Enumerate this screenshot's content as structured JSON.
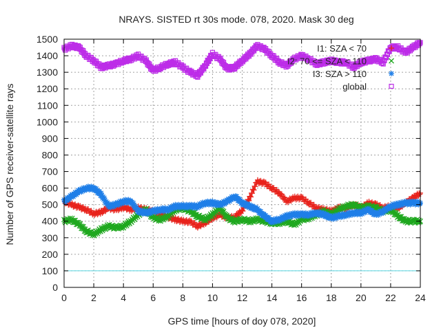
{
  "chart_data": {
    "type": "scatter",
    "title": "NRAYS. SISTED rt 30s mode. 078, 2020. Mask 30 deg",
    "xlabel": "GPS time [hours of doy 078, 2020]",
    "ylabel": "Number of GPS receiver-satellite rays",
    "xlim": [
      0,
      24
    ],
    "ylim": [
      0,
      1500
    ],
    "xticks": [
      "0",
      "2",
      "4",
      "6",
      "8",
      "10",
      "12",
      "14",
      "16",
      "18",
      "20",
      "22",
      "24"
    ],
    "yticks": [
      "0",
      "100",
      "200",
      "300",
      "400",
      "500",
      "600",
      "700",
      "800",
      "900",
      "1000",
      "1100",
      "1200",
      "1300",
      "1400",
      "1500"
    ],
    "grid": true,
    "legend_position": "top-right",
    "reference_line": {
      "y": 100,
      "color": "#55d5e0"
    },
    "series": [
      {
        "name": "I1: SZA < 70",
        "color": "#e8231c",
        "marker": "+",
        "x": [
          0,
          0.5,
          1,
          1.5,
          2,
          2.5,
          3,
          3.5,
          4,
          4.5,
          5,
          5.5,
          6,
          6.5,
          7,
          7.5,
          8,
          8.5,
          9,
          9.5,
          10,
          10.5,
          11,
          11.5,
          12,
          12.5,
          13,
          13.5,
          14,
          14.5,
          15,
          15.5,
          16,
          16.5,
          17,
          17.5,
          18,
          18.5,
          19,
          19.5,
          20,
          20.5,
          21,
          21.5,
          22,
          22.5,
          23,
          23.5,
          24
        ],
        "values": [
          520,
          500,
          485,
          470,
          445,
          455,
          480,
          470,
          485,
          470,
          480,
          470,
          460,
          440,
          425,
          410,
          400,
          395,
          370,
          390,
          420,
          440,
          420,
          425,
          465,
          540,
          640,
          630,
          600,
          570,
          520,
          540,
          540,
          510,
          480,
          470,
          460,
          480,
          480,
          500,
          480,
          510,
          500,
          480,
          490,
          480,
          510,
          540,
          570
        ]
      },
      {
        "name": "I2: 70 <= SZA < 110",
        "color": "#1fa81f",
        "marker": "x",
        "x": [
          0,
          0.5,
          1,
          1.5,
          2,
          2.5,
          3,
          3.5,
          4,
          4.5,
          5,
          5.5,
          6,
          6.5,
          7,
          7.5,
          8,
          8.5,
          9,
          9.5,
          10,
          10.5,
          11,
          11.5,
          12,
          12.5,
          13,
          13.5,
          14,
          14.5,
          15,
          15.5,
          16,
          16.5,
          17,
          17.5,
          18,
          18.5,
          19,
          19.5,
          20,
          20.5,
          21,
          21.5,
          22,
          22.5,
          23,
          23.5,
          24
        ],
        "values": [
          400,
          410,
          380,
          340,
          320,
          350,
          370,
          360,
          370,
          400,
          440,
          470,
          420,
          410,
          430,
          470,
          480,
          460,
          430,
          410,
          440,
          480,
          420,
          400,
          410,
          400,
          410,
          400,
          390,
          390,
          400,
          380,
          410,
          420,
          440,
          460,
          440,
          470,
          490,
          500,
          480,
          490,
          480,
          460,
          470,
          430,
          400,
          400,
          400
        ]
      },
      {
        "name": "I3: SZA > 110",
        "color": "#1f7fe8",
        "marker": "*",
        "x": [
          0,
          0.5,
          1,
          1.5,
          2,
          2.5,
          3,
          3.5,
          4,
          4.5,
          5,
          5.5,
          6,
          6.5,
          7,
          7.5,
          8,
          8.5,
          9,
          9.5,
          10,
          10.5,
          11,
          11.5,
          12,
          12.5,
          13,
          13.5,
          14,
          14.5,
          15,
          15.5,
          16,
          16.5,
          17,
          17.5,
          18,
          18.5,
          19,
          19.5,
          20,
          20.5,
          21,
          21.5,
          22,
          22.5,
          23,
          23.5,
          24
        ],
        "values": [
          520,
          550,
          580,
          600,
          600,
          560,
          490,
          500,
          520,
          520,
          460,
          450,
          460,
          470,
          470,
          490,
          490,
          490,
          490,
          510,
          510,
          500,
          520,
          550,
          510,
          490,
          470,
          430,
          400,
          410,
          430,
          440,
          440,
          440,
          450,
          440,
          420,
          430,
          440,
          450,
          450,
          470,
          440,
          460,
          490,
          500,
          510,
          510,
          510
        ]
      },
      {
        "name": "global",
        "color": "#bd2de8",
        "marker": "square",
        "x": [
          0,
          0.5,
          1,
          1.5,
          2,
          2.5,
          3,
          3.5,
          4,
          4.5,
          5,
          5.5,
          6,
          6.5,
          7,
          7.5,
          8,
          8.5,
          9,
          9.5,
          10,
          10.5,
          11,
          11.5,
          12,
          12.5,
          13,
          13.5,
          14,
          14.5,
          15,
          15.5,
          16,
          16.5,
          17,
          17.5,
          18,
          18.5,
          19,
          19.5,
          20,
          20.5,
          21,
          21.5,
          22,
          22.5,
          23,
          23.5,
          24
        ],
        "values": [
          1440,
          1460,
          1450,
          1400,
          1370,
          1330,
          1340,
          1350,
          1370,
          1380,
          1400,
          1370,
          1310,
          1330,
          1350,
          1360,
          1330,
          1300,
          1280,
          1340,
          1410,
          1380,
          1320,
          1330,
          1370,
          1410,
          1460,
          1440,
          1400,
          1360,
          1340,
          1380,
          1400,
          1380,
          1350,
          1360,
          1370,
          1360,
          1360,
          1330,
          1360,
          1370,
          1380,
          1360,
          1450,
          1450,
          1420,
          1450,
          1480
        ]
      }
    ]
  }
}
